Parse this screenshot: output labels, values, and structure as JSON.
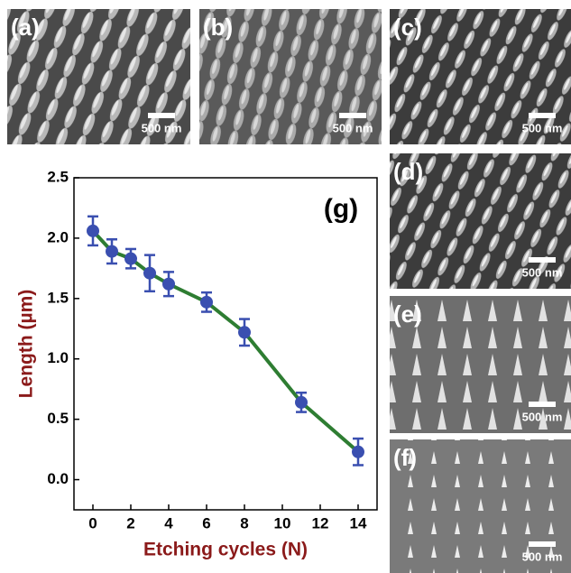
{
  "panels": [
    {
      "label": "(a)",
      "scale_bar": "500 nm"
    },
    {
      "label": "(b)",
      "scale_bar": "500 nm"
    },
    {
      "label": "(c)",
      "scale_bar": "500 nm"
    },
    {
      "label": "(d)",
      "scale_bar": "500 nm"
    },
    {
      "label": "(e)",
      "scale_bar": "500 nm"
    },
    {
      "label": "(f)",
      "scale_bar": "500 nm"
    }
  ],
  "chart_data": {
    "type": "line",
    "annotation": "(g)",
    "x_label": "Etching cycles (N)",
    "y_label": "Length (µm)",
    "x": [
      0,
      1,
      2,
      3,
      4,
      6,
      8,
      11,
      14
    ],
    "series": [
      {
        "color": "#2e7d32",
        "marker_color": "#3a4fb0",
        "values": [
          2.06,
          1.89,
          1.83,
          1.71,
          1.62,
          1.47,
          1.22,
          0.64,
          0.23
        ],
        "errors": [
          0.12,
          0.1,
          0.08,
          0.15,
          0.1,
          0.08,
          0.11,
          0.08,
          0.11
        ]
      }
    ],
    "xlim": [
      -1,
      15
    ],
    "xticks": [
      0,
      2,
      4,
      6,
      8,
      10,
      12,
      14
    ],
    "ylim": [
      -0.25,
      2.5
    ],
    "yticks": [
      {
        "value": 0,
        "label": "0.0"
      },
      0.5,
      {
        "value": 1,
        "label": "1.0"
      },
      1.5,
      {
        "value": 2,
        "label": "2.0"
      },
      2.5
    ],
    "axis_label_color": "#8b1a1a"
  }
}
